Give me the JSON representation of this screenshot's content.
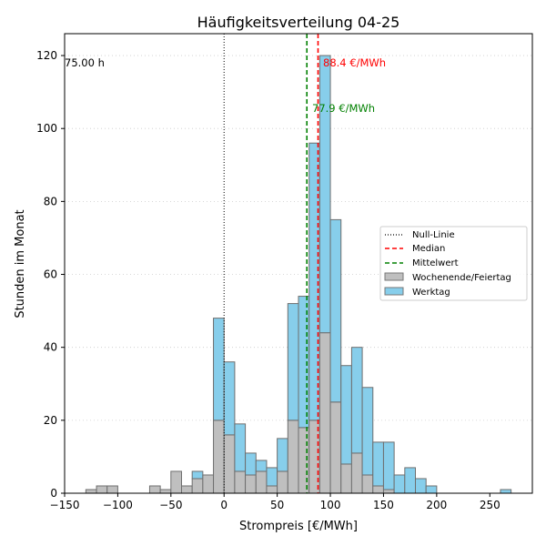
{
  "chart_data": {
    "type": "bar",
    "title": "Häufigkeitsverteilung 04-25",
    "xlabel": "Strompreis [€/MWh]",
    "ylabel": "Stunden im Monat",
    "xlim": [
      -150,
      290
    ],
    "ylim": [
      0,
      126
    ],
    "xticks": [
      -150,
      -100,
      -50,
      0,
      50,
      100,
      150,
      200,
      250
    ],
    "yticks": [
      0,
      20,
      40,
      60,
      80,
      100,
      120
    ],
    "grid": "horizontal dotted",
    "bin_width": 10,
    "bin_starts": [
      -130,
      -120,
      -110,
      -100,
      -90,
      -80,
      -70,
      -60,
      -50,
      -40,
      -30,
      -20,
      -10,
      0,
      10,
      20,
      30,
      40,
      50,
      60,
      70,
      80,
      90,
      100,
      110,
      120,
      130,
      140,
      150,
      160,
      170,
      180,
      190,
      200,
      210,
      220,
      230,
      240,
      250,
      260
    ],
    "series": [
      {
        "name": "Wochenende/Feiertag",
        "color": "#bfbfbf",
        "values": [
          1,
          2,
          2,
          0,
          0,
          0,
          2,
          1,
          6,
          2,
          4,
          5,
          20,
          16,
          6,
          5,
          6,
          2,
          6,
          20,
          18,
          20,
          44,
          25,
          8,
          11,
          5,
          2,
          1,
          0,
          0,
          0,
          0,
          0,
          0,
          0,
          0,
          0,
          0,
          0
        ]
      },
      {
        "name": "Werktag",
        "color": "#87ceeb",
        "values": [
          0,
          0,
          0,
          0,
          0,
          0,
          0,
          0,
          0,
          0,
          2,
          0,
          28,
          20,
          13,
          6,
          3,
          5,
          9,
          32,
          36,
          76,
          76,
          50,
          27,
          29,
          24,
          12,
          13,
          5,
          7,
          4,
          2,
          0,
          0,
          0,
          0,
          0,
          0,
          1
        ]
      }
    ],
    "lines": [
      {
        "name": "Null-Linie",
        "x": 0,
        "color": "#000000",
        "style": "dotted"
      },
      {
        "name": "Median",
        "x": 88.4,
        "color": "#ff0000",
        "style": "dashed"
      },
      {
        "name": "Mittelwert",
        "x": 77.9,
        "color": "#008000",
        "style": "dashed"
      }
    ],
    "annotations": [
      {
        "text": "75.00 h",
        "color": "#000000"
      },
      {
        "text": "88.4 €/MWh",
        "color": "#ff0000"
      },
      {
        "text": "77.9 €/MWh",
        "color": "#008000"
      }
    ],
    "legend": {
      "position": "right",
      "entries": [
        "Null-Linie",
        "Median",
        "Mittelwert",
        "Wochenende/Feiertag",
        "Werktag"
      ]
    }
  }
}
